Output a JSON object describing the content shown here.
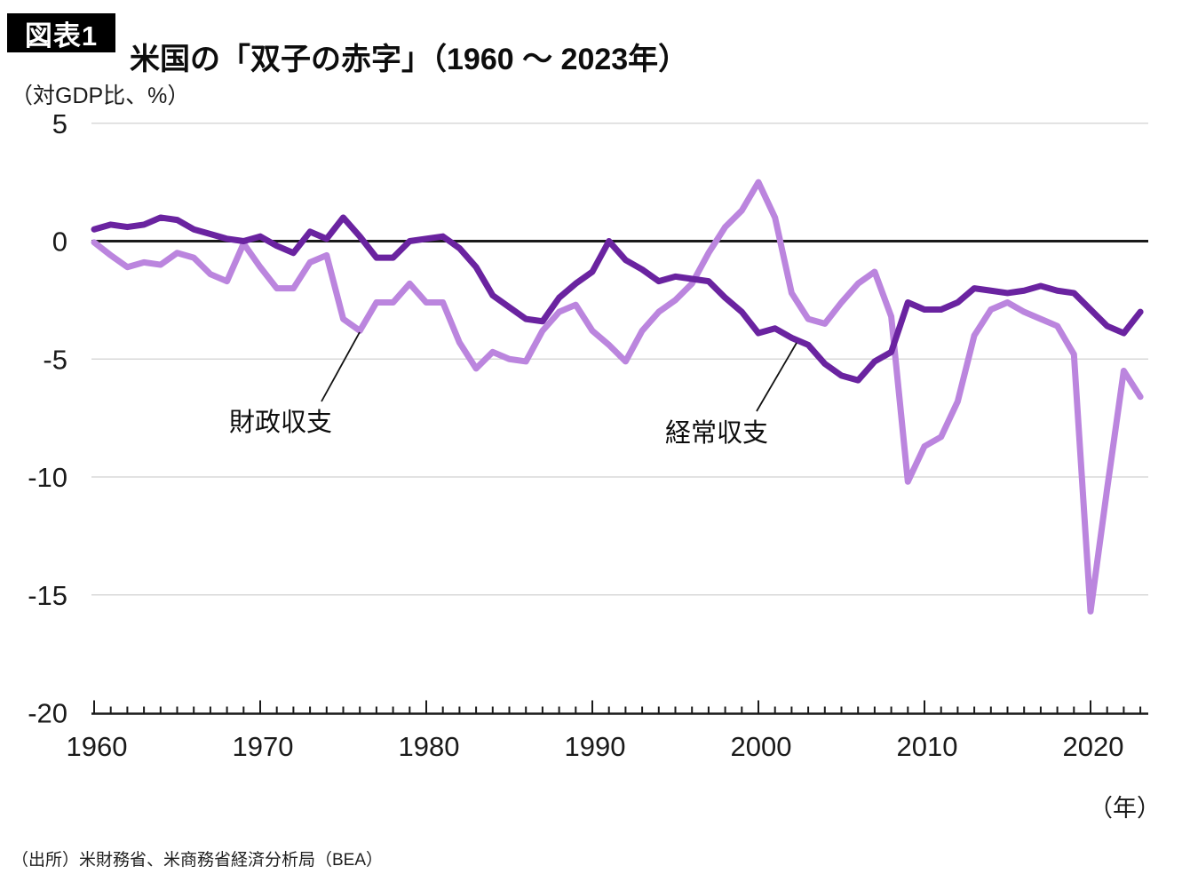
{
  "header": {
    "badge": "図表1",
    "title": "米国の「双子の赤字」（1960 ～ 2023年）"
  },
  "chart": {
    "unit_label": "（対GDP比、%）",
    "x_axis_unit": "（年）"
  },
  "annotations": {
    "fiscal": "財政収支",
    "current": "経常収支"
  },
  "footer": {
    "source": "（出所）米財務省、米商務省経済分析局（BEA）"
  },
  "colors": {
    "fiscal_line": "#bb85de",
    "current_line": "#6a23a0",
    "zero_line": "#1a1a1a",
    "axis": "#1a1a1a",
    "gridline": "#d8d8d8",
    "leader_line": "#111111"
  },
  "chart_data": {
    "type": "line",
    "title": "米国の「双子の赤字」（1960 ～ 2023年）",
    "ylabel": "（対GDP比、%）",
    "xlabel": "（年）",
    "ylim": [
      -20,
      5
    ],
    "yticks": [
      5,
      0,
      -5,
      -10,
      -15,
      -20
    ],
    "xticks": [
      1960,
      1970,
      1980,
      1990,
      2000,
      2010,
      2020
    ],
    "minor_xtick_every_year": true,
    "grid": "horizontal",
    "legend": "inline-annotations",
    "x": [
      1960,
      1961,
      1962,
      1963,
      1964,
      1965,
      1966,
      1967,
      1968,
      1969,
      1970,
      1971,
      1972,
      1973,
      1974,
      1975,
      1976,
      1977,
      1978,
      1979,
      1980,
      1981,
      1982,
      1983,
      1984,
      1985,
      1986,
      1987,
      1988,
      1989,
      1990,
      1991,
      1992,
      1993,
      1994,
      1995,
      1996,
      1997,
      1998,
      1999,
      2000,
      2001,
      2002,
      2003,
      2004,
      2005,
      2006,
      2007,
      2008,
      2009,
      2010,
      2011,
      2012,
      2013,
      2014,
      2015,
      2016,
      2017,
      2018,
      2019,
      2020,
      2021,
      2022,
      2023
    ],
    "series": [
      {
        "name": "財政収支",
        "color": "#bb85de",
        "values": [
          -0.05,
          -0.6,
          -1.1,
          -0.9,
          -1.0,
          -0.5,
          -0.7,
          -1.4,
          -1.7,
          -0.1,
          -1.1,
          -2.0,
          -2.0,
          -0.9,
          -0.6,
          -3.3,
          -3.8,
          -2.6,
          -2.6,
          -1.8,
          -2.6,
          -2.6,
          -4.3,
          -5.4,
          -4.7,
          -5.0,
          -5.1,
          -3.8,
          -3.0,
          -2.7,
          -3.8,
          -4.4,
          -5.1,
          -3.8,
          -3.0,
          -2.5,
          -1.8,
          -0.5,
          0.6,
          1.3,
          2.5,
          1.0,
          -2.2,
          -3.3,
          -3.5,
          -2.6,
          -1.8,
          -1.3,
          -3.2,
          -10.2,
          -8.7,
          -8.3,
          -6.8,
          -4.0,
          -2.9,
          -2.6,
          -3.0,
          -3.3,
          -3.6,
          -4.8,
          -15.7,
          -10.5,
          -5.5,
          -6.6
        ]
      },
      {
        "name": "経常収支",
        "color": "#6a23a0",
        "values": [
          0.5,
          0.7,
          0.6,
          0.7,
          1.0,
          0.9,
          0.5,
          0.3,
          0.1,
          0.0,
          0.2,
          -0.2,
          -0.5,
          0.4,
          0.1,
          1.0,
          0.2,
          -0.7,
          -0.7,
          0.0,
          0.1,
          0.2,
          -0.3,
          -1.1,
          -2.3,
          -2.8,
          -3.3,
          -3.4,
          -2.4,
          -1.8,
          -1.3,
          0.0,
          -0.8,
          -1.2,
          -1.7,
          -1.5,
          -1.6,
          -1.7,
          -2.4,
          -3.0,
          -3.9,
          -3.7,
          -4.1,
          -4.4,
          -5.2,
          -5.7,
          -5.9,
          -5.1,
          -4.7,
          -2.6,
          -2.9,
          -2.9,
          -2.6,
          -2.0,
          -2.1,
          -2.2,
          -2.1,
          -1.9,
          -2.1,
          -2.2,
          -2.9,
          -3.6,
          -3.9,
          -3.0
        ]
      }
    ],
    "annotations": [
      {
        "text": "財政収支",
        "series": "財政収支",
        "leader": [
          [
            362,
            452
          ],
          [
            405,
            374
          ]
        ]
      },
      {
        "text": "経常収支",
        "series": "経常収支",
        "leader": [
          [
            852,
            463
          ],
          [
            897,
            386
          ]
        ]
      }
    ]
  }
}
